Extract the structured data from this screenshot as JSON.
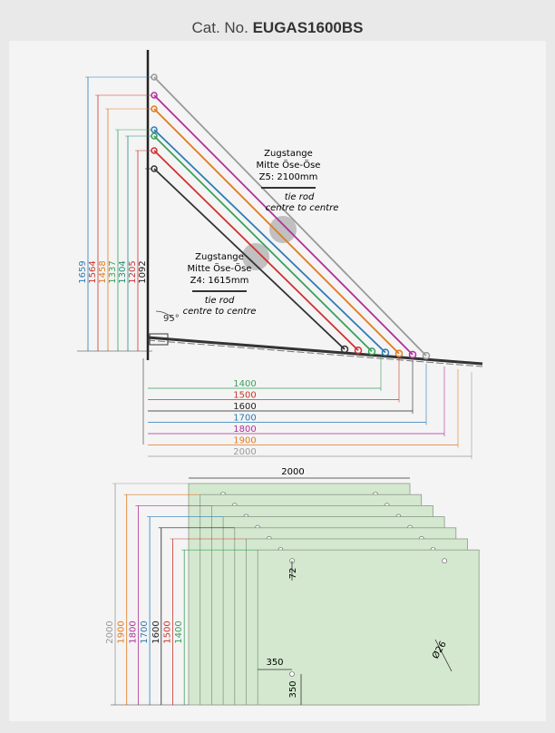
{
  "header": {
    "prefix": "Cat. No.",
    "code": "EUGAS1600BS"
  },
  "side_view": {
    "heights": [
      "1659",
      "1564",
      "1458",
      "1337",
      "1304",
      "1205",
      "1092"
    ],
    "projections": [
      "1400",
      "1500",
      "1600",
      "1700",
      "1800",
      "1900",
      "2000"
    ],
    "angle": "95°",
    "rods": [
      {
        "title": "Zugstange",
        "subtitle": "Mitte Öse-Öse",
        "length": "Z5: 2100mm",
        "en_1": "tie rod",
        "en_2": "centre to centre"
      },
      {
        "title": "Zugstange",
        "subtitle": "Mitte Öse-Öse",
        "length": "Z4: 1615mm",
        "en_1": "tie rod",
        "en_2": "centre to centre"
      }
    ]
  },
  "panels": {
    "width": "2000",
    "heights": [
      "2000",
      "1900",
      "1800",
      "1700",
      "1600",
      "1500",
      "1400"
    ],
    "hole_offset": "72",
    "edge_x": "350",
    "edge_y": "350",
    "hole_diameter": "Ø26"
  }
}
